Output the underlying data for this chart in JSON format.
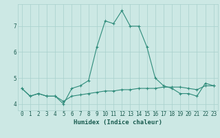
{
  "xlabel": "Humidex (Indice chaleur)",
  "x": [
    0,
    1,
    2,
    3,
    4,
    5,
    6,
    7,
    8,
    9,
    10,
    11,
    12,
    13,
    14,
    15,
    16,
    17,
    18,
    19,
    20,
    21,
    22,
    23
  ],
  "line1": [
    4.6,
    4.3,
    4.4,
    4.3,
    4.3,
    4.0,
    4.6,
    4.7,
    4.9,
    6.2,
    7.2,
    7.1,
    7.6,
    7.0,
    7.0,
    6.2,
    5.0,
    4.7,
    4.6,
    4.4,
    4.4,
    4.3,
    4.8,
    4.7
  ],
  "line2": [
    4.6,
    4.3,
    4.4,
    4.3,
    4.3,
    4.1,
    4.3,
    4.35,
    4.4,
    4.45,
    4.5,
    4.5,
    4.55,
    4.55,
    4.6,
    4.6,
    4.6,
    4.65,
    4.65,
    4.65,
    4.6,
    4.55,
    4.7,
    4.7
  ],
  "line_color": "#2e8b7a",
  "bg_color": "#cce8e4",
  "grid_color": "#a8d0cc",
  "ylim": [
    3.75,
    7.85
  ],
  "yticks": [
    4,
    5,
    6,
    7
  ],
  "xticks": [
    0,
    1,
    2,
    3,
    4,
    5,
    6,
    7,
    8,
    9,
    10,
    11,
    12,
    13,
    14,
    15,
    16,
    17,
    18,
    19,
    20,
    21,
    22,
    23
  ],
  "marker": "+",
  "linewidth": 0.8,
  "markersize": 3,
  "markeredgewidth": 0.8,
  "font_color": "#1a5c50",
  "xlabel_fontsize": 6.5,
  "tick_fontsize": 5.5
}
